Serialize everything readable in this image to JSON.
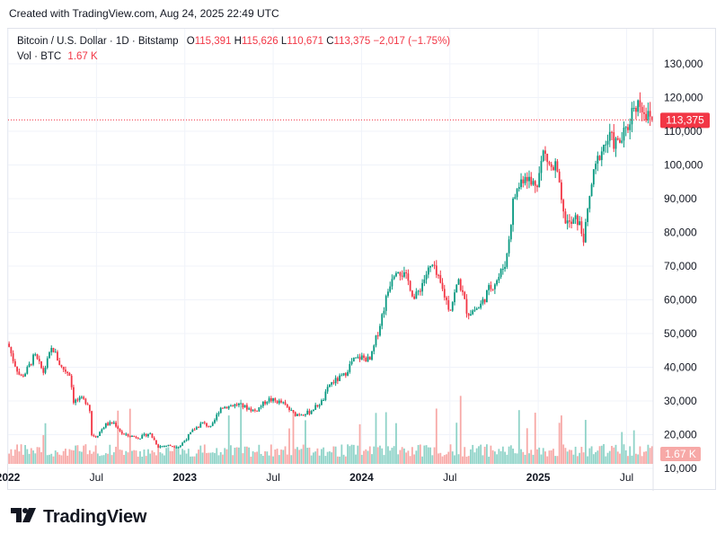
{
  "caption": "Created with TradingView.com, Aug 24, 2025 22:49 UTC",
  "legend": {
    "symbol": "Bitcoin / U.S. Dollar · 1D · Bitstamp",
    "o_label": "O",
    "o_value": "115,391",
    "h_label": "H",
    "h_value": "115,626",
    "l_label": "L",
    "l_value": "110,671",
    "c_label": "C",
    "c_value": "113,375",
    "change": "−2,017 (−1.75%)",
    "vol_label": "Vol · BTC",
    "vol_value": "1.67 K"
  },
  "colors": {
    "up": "#089981",
    "down": "#f23645",
    "up_vol": "#8fd3c8",
    "down_vol": "#f7a9a7",
    "grid": "#f0f3fa",
    "text": "#131722"
  },
  "brand": {
    "name": "TradingView",
    "logo_icon": "tradingview-logo-icon"
  },
  "chart_data": {
    "type": "candlestick",
    "title": "Bitcoin / U.S. Dollar · 1D · Bitstamp",
    "timeframe": "1D",
    "y_axis": {
      "ticks": [
        "130,000",
        "120,000",
        "110,000",
        "100,000",
        "90,000",
        "80,000",
        "70,000",
        "60,000",
        "50,000",
        "40,000",
        "30,000",
        "20,000",
        "10,000"
      ],
      "tick_values": [
        130000,
        120000,
        110000,
        100000,
        90000,
        80000,
        70000,
        60000,
        50000,
        40000,
        30000,
        20000,
        10000
      ],
      "range": [
        6000,
        134000
      ]
    },
    "x_axis": {
      "ticks": [
        {
          "label": "2022",
          "t": 2022.0,
          "bold": true
        },
        {
          "label": "Jul",
          "t": 2022.5,
          "bold": false
        },
        {
          "label": "2023",
          "t": 2023.0,
          "bold": true
        },
        {
          "label": "Jul",
          "t": 2023.5,
          "bold": false
        },
        {
          "label": "2024",
          "t": 2024.0,
          "bold": true
        },
        {
          "label": "Jul",
          "t": 2024.5,
          "bold": false
        },
        {
          "label": "2025",
          "t": 2025.0,
          "bold": true
        },
        {
          "label": "Jul",
          "t": 2025.5,
          "bold": false
        }
      ],
      "range": [
        2022.0,
        2025.65
      ]
    },
    "last_price": {
      "value": 113375,
      "label": "113,375"
    },
    "last_volume": {
      "label": "1.67 K"
    },
    "price_path": [
      [
        2022.0,
        47000
      ],
      [
        2022.03,
        42000
      ],
      [
        2022.07,
        37000
      ],
      [
        2022.1,
        38500
      ],
      [
        2022.15,
        43500
      ],
      [
        2022.2,
        38500
      ],
      [
        2022.25,
        46000
      ],
      [
        2022.3,
        40000
      ],
      [
        2022.35,
        38000
      ],
      [
        2022.37,
        30000
      ],
      [
        2022.42,
        30500
      ],
      [
        2022.46,
        29000
      ],
      [
        2022.47,
        20000
      ],
      [
        2022.5,
        19500
      ],
      [
        2022.55,
        23000
      ],
      [
        2022.6,
        23500
      ],
      [
        2022.65,
        20000
      ],
      [
        2022.7,
        19500
      ],
      [
        2022.75,
        19200
      ],
      [
        2022.8,
        20500
      ],
      [
        2022.85,
        16500
      ],
      [
        2022.9,
        16800
      ],
      [
        2022.97,
        16500
      ],
      [
        2023.05,
        21500
      ],
      [
        2023.1,
        23500
      ],
      [
        2023.15,
        22000
      ],
      [
        2023.2,
        28000
      ],
      [
        2023.3,
        29000
      ],
      [
        2023.4,
        27000
      ],
      [
        2023.47,
        30500
      ],
      [
        2023.55,
        29500
      ],
      [
        2023.62,
        26000
      ],
      [
        2023.7,
        26500
      ],
      [
        2023.78,
        30000
      ],
      [
        2023.82,
        35000
      ],
      [
        2023.9,
        37500
      ],
      [
        2023.95,
        42000
      ],
      [
        2024.0,
        43000
      ],
      [
        2024.05,
        42000
      ],
      [
        2024.1,
        52000
      ],
      [
        2024.17,
        67000
      ],
      [
        2024.2,
        70000
      ],
      [
        2024.27,
        65000
      ],
      [
        2024.3,
        60000
      ],
      [
        2024.37,
        68000
      ],
      [
        2024.4,
        70000
      ],
      [
        2024.45,
        64000
      ],
      [
        2024.5,
        57000
      ],
      [
        2024.55,
        66000
      ],
      [
        2024.6,
        56000
      ],
      [
        2024.67,
        58000
      ],
      [
        2024.72,
        63000
      ],
      [
        2024.78,
        67000
      ],
      [
        2024.82,
        72000
      ],
      [
        2024.86,
        90000
      ],
      [
        2024.9,
        95000
      ],
      [
        2024.93,
        98000
      ],
      [
        2024.96,
        94000
      ],
      [
        2025.0,
        96000
      ],
      [
        2025.03,
        104000
      ],
      [
        2025.08,
        98000
      ],
      [
        2025.1,
        100000
      ],
      [
        2025.14,
        85000
      ],
      [
        2025.18,
        82000
      ],
      [
        2025.22,
        84000
      ],
      [
        2025.26,
        78000
      ],
      [
        2025.3,
        94000
      ],
      [
        2025.35,
        104000
      ],
      [
        2025.4,
        108000
      ],
      [
        2025.45,
        106000
      ],
      [
        2025.5,
        110000
      ],
      [
        2025.54,
        118000
      ],
      [
        2025.58,
        118500
      ],
      [
        2025.62,
        114000
      ],
      [
        2025.65,
        113375
      ]
    ]
  }
}
